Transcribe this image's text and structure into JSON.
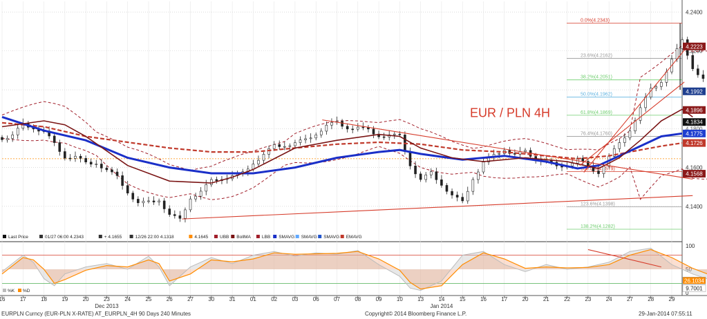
{
  "chart_data": {
    "type": "candlestick",
    "title": "EUR / PLN 4H",
    "instrument": "EURPLN Curncy (EUR-PLN X-RATE) AT_EURPLN_4H 90 Days 240 Minutes",
    "copyright": "Copyright© 2014 Bloomberg Finance L.P.",
    "timestamp": "29-Jan-2014 07:55:11",
    "x_ticks": [
      "16",
      "17",
      "18",
      "19",
      "20",
      "23",
      "24",
      "25",
      "26",
      "27",
      "30",
      "31",
      "01",
      "02",
      "03",
      "06",
      "07",
      "08",
      "09",
      "10",
      "13",
      "14",
      "15",
      "16",
      "17",
      "20",
      "21",
      "22",
      "23",
      "24",
      "27",
      "28",
      "29"
    ],
    "month_labels": [
      {
        "label": "Dec 2013",
        "tick": 5
      },
      {
        "label": "Jan 2014",
        "tick": 21
      }
    ],
    "price_axis": {
      "ticks": [
        4.14,
        4.16,
        4.18,
        4.2,
        4.22,
        4.24
      ],
      "range": [
        4.1275,
        4.2455
      ],
      "plus_label": "4.1800"
    },
    "value_tags": [
      {
        "value": "4.2223",
        "y": 4.2223,
        "bg": "#8b1a1a"
      },
      {
        "value": "4.1992",
        "y": 4.1992,
        "bg": "#1f3f8f"
      },
      {
        "value": "4.1896",
        "y": 4.1896,
        "bg": "#8b1a1a"
      },
      {
        "value": "4.1834",
        "y": 4.1834,
        "bg": "#111111"
      },
      {
        "value": "4.1775",
        "y": 4.1775,
        "bg": "#1f3fd0"
      },
      {
        "value": "4.1726",
        "y": 4.1726,
        "bg": "#c0392b"
      },
      {
        "value": "4.1568",
        "y": 4.1568,
        "bg": "#8b1a1a"
      }
    ],
    "fib_levels": [
      {
        "label": "0.0%(4.2343)",
        "value": 4.2343,
        "color": "#d63b2a"
      },
      {
        "label": "23.6%(4.2162)",
        "value": 4.2162,
        "color": "#999999"
      },
      {
        "label": "38.2%(4.2051)",
        "value": 4.2051,
        "color": "#6fce6f"
      },
      {
        "label": "50.0%(4.1962)",
        "value": 4.1962,
        "color": "#5fb2e0"
      },
      {
        "label": "61.8%(4.1869)",
        "value": 4.1869,
        "color": "#6fce6f"
      },
      {
        "label": "76.4%(4.1760)",
        "value": 4.176,
        "color": "#999999"
      },
      {
        "label": "100.0%(4.1579)",
        "value": 4.1579,
        "color": "#d63b2a"
      },
      {
        "label": "123.6%(4.1398)",
        "value": 4.1398,
        "color": "#999999"
      },
      {
        "label": "138.2%(4.1282)",
        "value": 4.1282,
        "color": "#6fce6f"
      }
    ],
    "orange_level": 4.1645,
    "ohlc_anchors": [
      [
        0,
        4.1755
      ],
      [
        0.5,
        4.176
      ],
      [
        1,
        4.182
      ],
      [
        1.5,
        4.181
      ],
      [
        2,
        4.178
      ],
      [
        2.5,
        4.172
      ],
      [
        3,
        4.166
      ],
      [
        3.5,
        4.165
      ],
      [
        4,
        4.162
      ],
      [
        4.5,
        4.163
      ],
      [
        5,
        4.158
      ],
      [
        5.5,
        4.155
      ],
      [
        6,
        4.148
      ],
      [
        6.5,
        4.141
      ],
      [
        7,
        4.142
      ],
      [
        7.5,
        4.144
      ],
      [
        8,
        4.135
      ],
      [
        8.5,
        4.133
      ],
      [
        9,
        4.145
      ],
      [
        9.5,
        4.147
      ],
      [
        10,
        4.153
      ],
      [
        10.5,
        4.155
      ],
      [
        11,
        4.155
      ],
      [
        11.5,
        4.157
      ],
      [
        12,
        4.163
      ],
      [
        12.5,
        4.166
      ],
      [
        13,
        4.171
      ],
      [
        13.5,
        4.172
      ],
      [
        14,
        4.172
      ],
      [
        14.5,
        4.174
      ],
      [
        15,
        4.178
      ],
      [
        15.5,
        4.181
      ],
      [
        16,
        4.183
      ],
      [
        16.5,
        4.181
      ],
      [
        17,
        4.18
      ],
      [
        17.5,
        4.179
      ],
      [
        18,
        4.177
      ],
      [
        18.5,
        4.176
      ],
      [
        19,
        4.176
      ],
      [
        19.5,
        4.162
      ],
      [
        20,
        4.153
      ],
      [
        20.5,
        4.157
      ],
      [
        21,
        4.152
      ],
      [
        21.5,
        4.145
      ],
      [
        22,
        4.142
      ],
      [
        22.5,
        4.155
      ],
      [
        23,
        4.162
      ],
      [
        23.5,
        4.166
      ],
      [
        24,
        4.17
      ],
      [
        24.5,
        4.166
      ],
      [
        25,
        4.168
      ],
      [
        25.5,
        4.165
      ],
      [
        26,
        4.163
      ],
      [
        26.5,
        4.16
      ],
      [
        27,
        4.162
      ],
      [
        27.5,
        4.164
      ],
      [
        28,
        4.16
      ],
      [
        28.5,
        4.158
      ],
      [
        29,
        4.165
      ],
      [
        29.5,
        4.172
      ],
      [
        30,
        4.18
      ],
      [
        30.5,
        4.19
      ],
      [
        31,
        4.2
      ],
      [
        31.5,
        4.205
      ],
      [
        32,
        4.215
      ],
      [
        32.5,
        4.225
      ],
      [
        33,
        4.212
      ],
      [
        33.5,
        4.205
      ],
      [
        34,
        4.195
      ],
      [
        34.5,
        4.198
      ],
      [
        35,
        4.19
      ],
      [
        35.5,
        4.184
      ]
    ],
    "sma_long": [
      [
        0,
        4.186
      ],
      [
        2,
        4.179
      ],
      [
        4,
        4.174
      ],
      [
        6,
        4.165
      ],
      [
        8,
        4.16
      ],
      [
        10,
        4.157
      ],
      [
        12,
        4.157
      ],
      [
        14,
        4.16
      ],
      [
        16,
        4.165
      ],
      [
        18,
        4.168
      ],
      [
        19,
        4.169
      ],
      [
        20,
        4.167
      ],
      [
        22,
        4.164
      ],
      [
        24,
        4.166
      ],
      [
        26,
        4.163
      ],
      [
        27.5,
        4.1595
      ],
      [
        28.5,
        4.161
      ],
      [
        29.5,
        4.166
      ],
      [
        30.5,
        4.171
      ],
      [
        31.5,
        4.176
      ],
      [
        32.5,
        4.1775
      ]
    ],
    "sma_mid": [
      [
        0,
        4.181
      ],
      [
        2,
        4.184
      ],
      [
        3,
        4.182
      ],
      [
        4,
        4.176
      ],
      [
        6,
        4.161
      ],
      [
        8,
        4.153
      ],
      [
        10,
        4.152
      ],
      [
        11,
        4.155
      ],
      [
        12,
        4.159
      ],
      [
        14,
        4.17
      ],
      [
        16,
        4.174
      ],
      [
        18,
        4.177
      ],
      [
        19,
        4.176
      ],
      [
        20,
        4.17
      ],
      [
        21.5,
        4.165
      ],
      [
        23,
        4.163
      ],
      [
        25,
        4.165
      ],
      [
        27,
        4.163
      ],
      [
        28.5,
        4.1595
      ],
      [
        29.5,
        4.165
      ],
      [
        30.5,
        4.174
      ],
      [
        31.5,
        4.184
      ],
      [
        32.5,
        4.19
      ],
      [
        33,
        4.186
      ]
    ],
    "ema": [
      [
        0,
        4.183
      ],
      [
        2,
        4.181
      ],
      [
        4,
        4.176
      ],
      [
        6,
        4.173
      ],
      [
        8,
        4.17
      ],
      [
        10,
        4.168
      ],
      [
        12,
        4.168
      ],
      [
        14,
        4.17
      ],
      [
        16,
        4.172
      ],
      [
        18,
        4.173
      ],
      [
        20,
        4.172
      ],
      [
        22,
        4.169
      ],
      [
        24,
        4.168
      ],
      [
        26,
        4.166
      ],
      [
        27.5,
        4.1645
      ],
      [
        29,
        4.166
      ],
      [
        30.5,
        4.169
      ],
      [
        31.5,
        4.171
      ],
      [
        32.5,
        4.1726
      ]
    ],
    "trendlines": [
      [
        [
          8.6,
          4.1335
        ],
        [
          33,
          4.1455
        ]
      ],
      [
        [
          15.3,
          4.1845
        ],
        [
          33,
          4.154
        ]
      ],
      [
        [
          27.8,
          4.1575
        ],
        [
          32.8,
          4.223
        ]
      ],
      [
        [
          27.6,
          4.161
        ],
        [
          32.6,
          4.204
        ]
      ]
    ],
    "legend": [
      {
        "label": "Last Price",
        "color": "#111111"
      },
      {
        "label": "01/27 06:00 4.2343",
        "color": "#333333"
      },
      {
        "label": "+ 4.1655",
        "color": "#333333"
      },
      {
        "label": "12/26 22:00 4.1318",
        "color": "#333333"
      },
      {
        "label": "4.1645",
        "color": "#ff8c00"
      },
      {
        "label": "UBB",
        "color": "#a11f2a"
      },
      {
        "label": "BollMA",
        "color": "#7a1414"
      },
      {
        "label": "LBB",
        "color": "#a11f2a"
      },
      {
        "label": "SMAVG",
        "color": "#1a2fc8"
      },
      {
        "label": "SMAVG",
        "color": "#5fa8ff"
      },
      {
        "label": "SMAVG",
        "color": "#2255cc"
      },
      {
        "label": "EMAVG",
        "color": "#c0392b"
      }
    ],
    "oscillator": {
      "ticks": [
        0,
        50,
        100
      ],
      "upper_line": 80,
      "lower_line": 20,
      "tags": [
        {
          "value": "26.1034",
          "y": 26.1,
          "bg": "#ff8c00"
        },
        {
          "value": "9.7001",
          "y": 9.7,
          "bg": "#ffffff"
        }
      ],
      "legend": [
        {
          "label": "%K",
          "color": "#bbbbbb"
        },
        {
          "label": "%D",
          "color": "#ff8c00"
        }
      ],
      "k": [
        [
          0,
          45
        ],
        [
          1,
          80
        ],
        [
          1.5,
          65
        ],
        [
          2,
          30
        ],
        [
          2.5,
          15
        ],
        [
          3,
          40
        ],
        [
          4,
          55
        ],
        [
          5,
          62
        ],
        [
          6,
          50
        ],
        [
          7,
          78
        ],
        [
          7.5,
          55
        ],
        [
          8,
          15
        ],
        [
          9,
          55
        ],
        [
          10,
          75
        ],
        [
          11,
          62
        ],
        [
          12,
          80
        ],
        [
          13,
          88
        ],
        [
          14,
          78
        ],
        [
          15,
          85
        ],
        [
          16,
          82
        ],
        [
          17,
          90
        ],
        [
          18,
          60
        ],
        [
          19,
          35
        ],
        [
          19.5,
          10
        ],
        [
          20,
          5
        ],
        [
          21,
          25
        ],
        [
          22,
          80
        ],
        [
          23,
          88
        ],
        [
          24,
          60
        ],
        [
          25,
          45
        ],
        [
          26,
          60
        ],
        [
          27,
          50
        ],
        [
          28,
          55
        ],
        [
          29,
          65
        ],
        [
          30,
          88
        ],
        [
          31,
          95
        ],
        [
          32,
          60
        ],
        [
          33,
          40
        ],
        [
          34,
          25
        ],
        [
          35,
          9.7
        ]
      ],
      "d": [
        [
          0,
          40
        ],
        [
          1,
          75
        ],
        [
          1.5,
          70
        ],
        [
          2,
          50
        ],
        [
          2.5,
          20
        ],
        [
          3,
          28
        ],
        [
          4,
          48
        ],
        [
          5,
          58
        ],
        [
          6,
          55
        ],
        [
          7,
          70
        ],
        [
          7.5,
          62
        ],
        [
          8,
          25
        ],
        [
          9,
          40
        ],
        [
          10,
          70
        ],
        [
          11,
          66
        ],
        [
          12,
          72
        ],
        [
          13,
          85
        ],
        [
          14,
          82
        ],
        [
          15,
          83
        ],
        [
          16,
          84
        ],
        [
          17,
          88
        ],
        [
          18,
          72
        ],
        [
          19,
          48
        ],
        [
          19.5,
          22
        ],
        [
          20,
          8
        ],
        [
          21,
          15
        ],
        [
          22,
          60
        ],
        [
          23,
          85
        ],
        [
          24,
          72
        ],
        [
          25,
          52
        ],
        [
          26,
          55
        ],
        [
          27,
          53
        ],
        [
          28,
          54
        ],
        [
          29,
          60
        ],
        [
          30,
          80
        ],
        [
          31,
          92
        ],
        [
          32,
          75
        ],
        [
          33,
          52
        ],
        [
          34,
          35
        ],
        [
          35,
          26.1
        ]
      ],
      "trendline": [
        [
          28,
          92
        ],
        [
          31.5,
          55
        ]
      ]
    }
  }
}
